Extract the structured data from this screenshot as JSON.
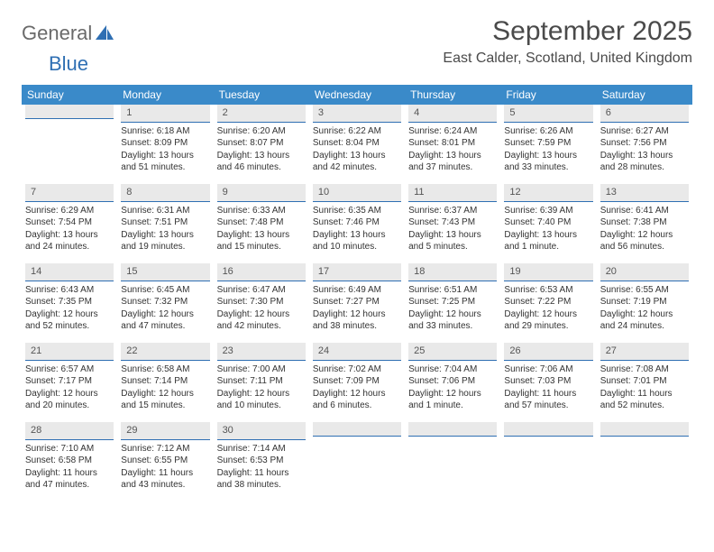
{
  "brand": {
    "part1": "General",
    "part2": "Blue"
  },
  "title": "September 2025",
  "location": "East Calder, Scotland, United Kingdom",
  "colors": {
    "header_bg": "#3a8ac9",
    "header_text": "#ffffff",
    "daybar_bg": "#e9e9e9",
    "daybar_border": "#2f6fb3",
    "body_text": "#333333",
    "page_bg": "#ffffff"
  },
  "typography": {
    "title_fontsize_pt": 22,
    "location_fontsize_pt": 12,
    "dayheader_fontsize_pt": 9,
    "cell_fontsize_pt": 8
  },
  "day_headers": [
    "Sunday",
    "Monday",
    "Tuesday",
    "Wednesday",
    "Thursday",
    "Friday",
    "Saturday"
  ],
  "weeks": [
    [
      {
        "num": "",
        "sunrise": "",
        "sunset": "",
        "daylight": ""
      },
      {
        "num": "1",
        "sunrise": "Sunrise: 6:18 AM",
        "sunset": "Sunset: 8:09 PM",
        "daylight": "Daylight: 13 hours and 51 minutes."
      },
      {
        "num": "2",
        "sunrise": "Sunrise: 6:20 AM",
        "sunset": "Sunset: 8:07 PM",
        "daylight": "Daylight: 13 hours and 46 minutes."
      },
      {
        "num": "3",
        "sunrise": "Sunrise: 6:22 AM",
        "sunset": "Sunset: 8:04 PM",
        "daylight": "Daylight: 13 hours and 42 minutes."
      },
      {
        "num": "4",
        "sunrise": "Sunrise: 6:24 AM",
        "sunset": "Sunset: 8:01 PM",
        "daylight": "Daylight: 13 hours and 37 minutes."
      },
      {
        "num": "5",
        "sunrise": "Sunrise: 6:26 AM",
        "sunset": "Sunset: 7:59 PM",
        "daylight": "Daylight: 13 hours and 33 minutes."
      },
      {
        "num": "6",
        "sunrise": "Sunrise: 6:27 AM",
        "sunset": "Sunset: 7:56 PM",
        "daylight": "Daylight: 13 hours and 28 minutes."
      }
    ],
    [
      {
        "num": "7",
        "sunrise": "Sunrise: 6:29 AM",
        "sunset": "Sunset: 7:54 PM",
        "daylight": "Daylight: 13 hours and 24 minutes."
      },
      {
        "num": "8",
        "sunrise": "Sunrise: 6:31 AM",
        "sunset": "Sunset: 7:51 PM",
        "daylight": "Daylight: 13 hours and 19 minutes."
      },
      {
        "num": "9",
        "sunrise": "Sunrise: 6:33 AM",
        "sunset": "Sunset: 7:48 PM",
        "daylight": "Daylight: 13 hours and 15 minutes."
      },
      {
        "num": "10",
        "sunrise": "Sunrise: 6:35 AM",
        "sunset": "Sunset: 7:46 PM",
        "daylight": "Daylight: 13 hours and 10 minutes."
      },
      {
        "num": "11",
        "sunrise": "Sunrise: 6:37 AM",
        "sunset": "Sunset: 7:43 PM",
        "daylight": "Daylight: 13 hours and 5 minutes."
      },
      {
        "num": "12",
        "sunrise": "Sunrise: 6:39 AM",
        "sunset": "Sunset: 7:40 PM",
        "daylight": "Daylight: 13 hours and 1 minute."
      },
      {
        "num": "13",
        "sunrise": "Sunrise: 6:41 AM",
        "sunset": "Sunset: 7:38 PM",
        "daylight": "Daylight: 12 hours and 56 minutes."
      }
    ],
    [
      {
        "num": "14",
        "sunrise": "Sunrise: 6:43 AM",
        "sunset": "Sunset: 7:35 PM",
        "daylight": "Daylight: 12 hours and 52 minutes."
      },
      {
        "num": "15",
        "sunrise": "Sunrise: 6:45 AM",
        "sunset": "Sunset: 7:32 PM",
        "daylight": "Daylight: 12 hours and 47 minutes."
      },
      {
        "num": "16",
        "sunrise": "Sunrise: 6:47 AM",
        "sunset": "Sunset: 7:30 PM",
        "daylight": "Daylight: 12 hours and 42 minutes."
      },
      {
        "num": "17",
        "sunrise": "Sunrise: 6:49 AM",
        "sunset": "Sunset: 7:27 PM",
        "daylight": "Daylight: 12 hours and 38 minutes."
      },
      {
        "num": "18",
        "sunrise": "Sunrise: 6:51 AM",
        "sunset": "Sunset: 7:25 PM",
        "daylight": "Daylight: 12 hours and 33 minutes."
      },
      {
        "num": "19",
        "sunrise": "Sunrise: 6:53 AM",
        "sunset": "Sunset: 7:22 PM",
        "daylight": "Daylight: 12 hours and 29 minutes."
      },
      {
        "num": "20",
        "sunrise": "Sunrise: 6:55 AM",
        "sunset": "Sunset: 7:19 PM",
        "daylight": "Daylight: 12 hours and 24 minutes."
      }
    ],
    [
      {
        "num": "21",
        "sunrise": "Sunrise: 6:57 AM",
        "sunset": "Sunset: 7:17 PM",
        "daylight": "Daylight: 12 hours and 20 minutes."
      },
      {
        "num": "22",
        "sunrise": "Sunrise: 6:58 AM",
        "sunset": "Sunset: 7:14 PM",
        "daylight": "Daylight: 12 hours and 15 minutes."
      },
      {
        "num": "23",
        "sunrise": "Sunrise: 7:00 AM",
        "sunset": "Sunset: 7:11 PM",
        "daylight": "Daylight: 12 hours and 10 minutes."
      },
      {
        "num": "24",
        "sunrise": "Sunrise: 7:02 AM",
        "sunset": "Sunset: 7:09 PM",
        "daylight": "Daylight: 12 hours and 6 minutes."
      },
      {
        "num": "25",
        "sunrise": "Sunrise: 7:04 AM",
        "sunset": "Sunset: 7:06 PM",
        "daylight": "Daylight: 12 hours and 1 minute."
      },
      {
        "num": "26",
        "sunrise": "Sunrise: 7:06 AM",
        "sunset": "Sunset: 7:03 PM",
        "daylight": "Daylight: 11 hours and 57 minutes."
      },
      {
        "num": "27",
        "sunrise": "Sunrise: 7:08 AM",
        "sunset": "Sunset: 7:01 PM",
        "daylight": "Daylight: 11 hours and 52 minutes."
      }
    ],
    [
      {
        "num": "28",
        "sunrise": "Sunrise: 7:10 AM",
        "sunset": "Sunset: 6:58 PM",
        "daylight": "Daylight: 11 hours and 47 minutes."
      },
      {
        "num": "29",
        "sunrise": "Sunrise: 7:12 AM",
        "sunset": "Sunset: 6:55 PM",
        "daylight": "Daylight: 11 hours and 43 minutes."
      },
      {
        "num": "30",
        "sunrise": "Sunrise: 7:14 AM",
        "sunset": "Sunset: 6:53 PM",
        "daylight": "Daylight: 11 hours and 38 minutes."
      },
      {
        "num": "",
        "sunrise": "",
        "sunset": "",
        "daylight": ""
      },
      {
        "num": "",
        "sunrise": "",
        "sunset": "",
        "daylight": ""
      },
      {
        "num": "",
        "sunrise": "",
        "sunset": "",
        "daylight": ""
      },
      {
        "num": "",
        "sunrise": "",
        "sunset": "",
        "daylight": ""
      }
    ]
  ]
}
